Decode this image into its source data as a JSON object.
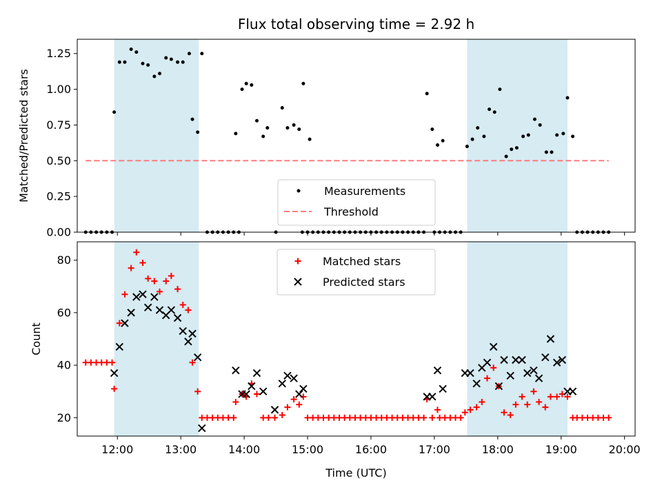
{
  "chart_data": [
    {
      "type": "scatter",
      "title": "Flux total observing time = 2.92 h",
      "xlabel": "",
      "ylabel": "Matched/Predicted stars",
      "ylim": [
        0,
        1.35
      ],
      "yticks": [
        "0.00",
        "0.25",
        "0.50",
        "0.75",
        "1.00",
        "1.25"
      ],
      "grid": false,
      "legend_placement": "lower-center",
      "shaded_intervals": [
        [
          "11:57",
          "13:17"
        ],
        [
          "17:31",
          "19:06"
        ]
      ],
      "threshold": {
        "name": "Threshold",
        "value": 0.5,
        "x_range": [
          "11:30",
          "19:45"
        ],
        "color": "#ff7b7b"
      },
      "series": [
        {
          "name": "Measurements",
          "marker": "dot",
          "color": "#000000",
          "points": [
            [
              "11:30",
              0
            ],
            [
              "11:35",
              0
            ],
            [
              "11:40",
              0
            ],
            [
              "11:45",
              0
            ],
            [
              "11:50",
              0
            ],
            [
              "11:55",
              0
            ],
            [
              "11:57",
              0.84
            ],
            [
              "12:02",
              1.19
            ],
            [
              "12:07",
              1.19
            ],
            [
              "12:13",
              1.28
            ],
            [
              "12:18",
              1.26
            ],
            [
              "12:24",
              1.18
            ],
            [
              "12:29",
              1.17
            ],
            [
              "12:35",
              1.09
            ],
            [
              "12:40",
              1.11
            ],
            [
              "12:46",
              1.22
            ],
            [
              "12:51",
              1.21
            ],
            [
              "12:57",
              1.19
            ],
            [
              "13:02",
              1.19
            ],
            [
              "13:08",
              1.25
            ],
            [
              "13:11",
              0.79
            ],
            [
              "13:16",
              0.7
            ],
            [
              "13:20",
              1.25
            ],
            [
              "13:25",
              0
            ],
            [
              "13:30",
              0
            ],
            [
              "13:35",
              0
            ],
            [
              "13:40",
              0
            ],
            [
              "13:45",
              0
            ],
            [
              "13:50",
              0
            ],
            [
              "13:55",
              0
            ],
            [
              "13:52",
              0.69
            ],
            [
              "13:58",
              1.0
            ],
            [
              "14:02",
              1.04
            ],
            [
              "14:07",
              1.03
            ],
            [
              "14:12",
              0.78
            ],
            [
              "14:18",
              0.67
            ],
            [
              "14:22",
              0.73
            ],
            [
              "14:30",
              0
            ],
            [
              "14:36",
              0.87
            ],
            [
              "14:41",
              0.73
            ],
            [
              "14:47",
              0.75
            ],
            [
              "14:52",
              0.72
            ],
            [
              "14:56",
              1.04
            ],
            [
              "15:02",
              0.65
            ],
            [
              "14:55",
              0
            ],
            [
              "15:00",
              0
            ],
            [
              "15:05",
              0
            ],
            [
              "15:10",
              0
            ],
            [
              "15:15",
              0
            ],
            [
              "15:20",
              0
            ],
            [
              "15:25",
              0
            ],
            [
              "15:30",
              0
            ],
            [
              "15:35",
              0
            ],
            [
              "15:40",
              0
            ],
            [
              "15:45",
              0
            ],
            [
              "15:50",
              0
            ],
            [
              "15:55",
              0
            ],
            [
              "16:00",
              0
            ],
            [
              "16:05",
              0
            ],
            [
              "16:10",
              0
            ],
            [
              "16:15",
              0
            ],
            [
              "16:20",
              0
            ],
            [
              "16:25",
              0
            ],
            [
              "16:30",
              0
            ],
            [
              "16:35",
              0
            ],
            [
              "16:40",
              0
            ],
            [
              "16:45",
              0
            ],
            [
              "16:50",
              0
            ],
            [
              "16:53",
              0.97
            ],
            [
              "16:58",
              0.72
            ],
            [
              "17:03",
              0.61
            ],
            [
              "17:08",
              0.64
            ],
            [
              "17:00",
              0
            ],
            [
              "17:05",
              0
            ],
            [
              "17:10",
              0
            ],
            [
              "17:15",
              0
            ],
            [
              "17:20",
              0
            ],
            [
              "17:25",
              0
            ],
            [
              "17:31",
              0.6
            ],
            [
              "17:36",
              0.65
            ],
            [
              "17:41",
              0.73
            ],
            [
              "17:47",
              0.67
            ],
            [
              "17:52",
              0.86
            ],
            [
              "17:57",
              0.84
            ],
            [
              "18:02",
              1.0
            ],
            [
              "18:08",
              0.53
            ],
            [
              "18:13",
              0.58
            ],
            [
              "18:18",
              0.59
            ],
            [
              "18:24",
              0.67
            ],
            [
              "18:29",
              0.68
            ],
            [
              "18:35",
              0.79
            ],
            [
              "18:40",
              0.75
            ],
            [
              "18:46",
              0.56
            ],
            [
              "18:51",
              0.56
            ],
            [
              "18:56",
              0.68
            ],
            [
              "19:02",
              0.69
            ],
            [
              "19:06",
              0.94
            ],
            [
              "19:11",
              0.67
            ],
            [
              "19:15",
              0
            ],
            [
              "19:20",
              0
            ],
            [
              "19:25",
              0
            ],
            [
              "19:30",
              0
            ],
            [
              "19:35",
              0
            ],
            [
              "19:40",
              0
            ],
            [
              "19:45",
              0
            ]
          ]
        }
      ]
    },
    {
      "type": "scatter",
      "title": "",
      "xlabel": "Time (UTC)",
      "ylabel": "Count",
      "xticks": [
        "12:00",
        "13:00",
        "14:00",
        "15:00",
        "16:00",
        "17:00",
        "18:00",
        "19:00",
        "20:00"
      ],
      "yticks": [
        "20",
        "40",
        "60",
        "80"
      ],
      "ylim": [
        13,
        87
      ],
      "grid": false,
      "legend_placement": "upper-center",
      "shaded_intervals": [
        [
          "11:57",
          "13:17"
        ],
        [
          "17:31",
          "19:06"
        ]
      ],
      "series": [
        {
          "name": "Matched stars",
          "marker": "plus",
          "color": "#ff0000",
          "points": [
            [
              "11:30",
              41
            ],
            [
              "11:35",
              41
            ],
            [
              "11:40",
              41
            ],
            [
              "11:45",
              41
            ],
            [
              "11:50",
              41
            ],
            [
              "11:55",
              41
            ],
            [
              "11:57",
              31
            ],
            [
              "12:02",
              56
            ],
            [
              "12:07",
              67
            ],
            [
              "12:13",
              77
            ],
            [
              "12:18",
              83
            ],
            [
              "12:24",
              79
            ],
            [
              "12:29",
              73
            ],
            [
              "12:35",
              72
            ],
            [
              "12:40",
              68
            ],
            [
              "12:46",
              72
            ],
            [
              "12:51",
              74
            ],
            [
              "12:57",
              69
            ],
            [
              "13:02",
              63
            ],
            [
              "13:07",
              61
            ],
            [
              "13:11",
              41
            ],
            [
              "13:16",
              30
            ],
            [
              "13:20",
              20
            ],
            [
              "13:25",
              20
            ],
            [
              "13:30",
              20
            ],
            [
              "13:35",
              20
            ],
            [
              "13:40",
              20
            ],
            [
              "13:45",
              20
            ],
            [
              "13:50",
              20
            ],
            [
              "13:52",
              26
            ],
            [
              "13:58",
              29
            ],
            [
              "14:02",
              28
            ],
            [
              "14:07",
              33
            ],
            [
              "14:12",
              29
            ],
            [
              "14:18",
              20
            ],
            [
              "14:23",
              20
            ],
            [
              "14:29",
              20
            ],
            [
              "14:36",
              21
            ],
            [
              "14:41",
              24
            ],
            [
              "14:47",
              27
            ],
            [
              "14:52",
              25
            ],
            [
              "14:56",
              28
            ],
            [
              "15:00",
              20
            ],
            [
              "15:05",
              20
            ],
            [
              "15:10",
              20
            ],
            [
              "15:15",
              20
            ],
            [
              "15:20",
              20
            ],
            [
              "15:25",
              20
            ],
            [
              "15:30",
              20
            ],
            [
              "15:35",
              20
            ],
            [
              "15:40",
              20
            ],
            [
              "15:45",
              20
            ],
            [
              "15:50",
              20
            ],
            [
              "15:55",
              20
            ],
            [
              "16:00",
              20
            ],
            [
              "16:05",
              20
            ],
            [
              "16:10",
              20
            ],
            [
              "16:15",
              20
            ],
            [
              "16:20",
              20
            ],
            [
              "16:25",
              20
            ],
            [
              "16:30",
              20
            ],
            [
              "16:35",
              20
            ],
            [
              "16:40",
              20
            ],
            [
              "16:45",
              20
            ],
            [
              "16:50",
              20
            ],
            [
              "16:53",
              27
            ],
            [
              "16:58",
              20
            ],
            [
              "17:03",
              23
            ],
            [
              "17:05",
              20
            ],
            [
              "17:10",
              20
            ],
            [
              "17:15",
              20
            ],
            [
              "17:20",
              20
            ],
            [
              "17:25",
              20
            ],
            [
              "17:29",
              22
            ],
            [
              "17:34",
              23
            ],
            [
              "17:40",
              24
            ],
            [
              "17:45",
              26
            ],
            [
              "17:50",
              35
            ],
            [
              "17:56",
              39
            ],
            [
              "18:01",
              32
            ],
            [
              "18:06",
              22
            ],
            [
              "18:12",
              21
            ],
            [
              "18:17",
              25
            ],
            [
              "18:23",
              28
            ],
            [
              "18:28",
              25
            ],
            [
              "18:34",
              30
            ],
            [
              "18:39",
              26
            ],
            [
              "18:45",
              24
            ],
            [
              "18:50",
              28
            ],
            [
              "18:56",
              28
            ],
            [
              "19:01",
              29
            ],
            [
              "19:06",
              28
            ],
            [
              "19:11",
              20
            ],
            [
              "19:15",
              20
            ],
            [
              "19:20",
              20
            ],
            [
              "19:25",
              20
            ],
            [
              "19:30",
              20
            ],
            [
              "19:35",
              20
            ],
            [
              "19:40",
              20
            ],
            [
              "19:45",
              20
            ]
          ]
        },
        {
          "name": "Predicted stars",
          "marker": "x",
          "color": "#000000",
          "points": [
            [
              "11:57",
              37
            ],
            [
              "12:02",
              47
            ],
            [
              "12:07",
              56
            ],
            [
              "12:13",
              60
            ],
            [
              "12:18",
              66
            ],
            [
              "12:24",
              67
            ],
            [
              "12:29",
              62
            ],
            [
              "12:35",
              66
            ],
            [
              "12:40",
              61
            ],
            [
              "12:46",
              59
            ],
            [
              "12:51",
              61
            ],
            [
              "12:57",
              58
            ],
            [
              "13:02",
              53
            ],
            [
              "13:07",
              49
            ],
            [
              "13:11",
              52
            ],
            [
              "13:16",
              43
            ],
            [
              "13:20",
              16
            ],
            [
              "13:52",
              38
            ],
            [
              "13:58",
              29
            ],
            [
              "14:02",
              29
            ],
            [
              "14:07",
              32
            ],
            [
              "14:12",
              37
            ],
            [
              "14:18",
              30
            ],
            [
              "14:29",
              23
            ],
            [
              "14:36",
              33
            ],
            [
              "14:41",
              36
            ],
            [
              "14:47",
              35
            ],
            [
              "14:52",
              29
            ],
            [
              "14:56",
              31
            ],
            [
              "16:53",
              28
            ],
            [
              "16:58",
              28
            ],
            [
              "17:03",
              38
            ],
            [
              "17:08",
              31
            ],
            [
              "17:29",
              37
            ],
            [
              "17:34",
              37
            ],
            [
              "17:40",
              33
            ],
            [
              "17:45",
              39
            ],
            [
              "17:50",
              41
            ],
            [
              "17:56",
              47
            ],
            [
              "18:01",
              32
            ],
            [
              "18:06",
              42
            ],
            [
              "18:12",
              36
            ],
            [
              "18:17",
              42
            ],
            [
              "18:23",
              42
            ],
            [
              "18:28",
              37
            ],
            [
              "18:34",
              38
            ],
            [
              "18:39",
              35
            ],
            [
              "18:45",
              43
            ],
            [
              "18:50",
              50
            ],
            [
              "18:56",
              41
            ],
            [
              "19:01",
              42
            ],
            [
              "19:06",
              30
            ],
            [
              "19:11",
              30
            ]
          ]
        }
      ]
    }
  ]
}
